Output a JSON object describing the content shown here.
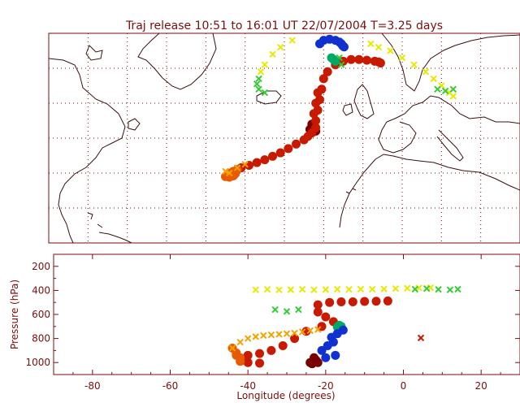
{
  "title": "Traj release 10:51 to 16:01 UT 22/07/2004    T=3.25 days",
  "colors": {
    "frame": "#7a0e0e",
    "grid": "#7a0e0e",
    "coast": "#3a1010",
    "palette": [
      "#7a0000",
      "#c81a00",
      "#e85a00",
      "#f5a200",
      "#e8e800",
      "#33cc33",
      "#00aa66",
      "#1030d0"
    ]
  },
  "chart_data": [
    {
      "type": "scatter",
      "panel": "map",
      "title": "Traj release 10:51 to 16:01 UT 22/07/2004    T=3.25 days",
      "xlim": [
        -90,
        30
      ],
      "ylim": [
        10,
        70
      ],
      "grid": true,
      "series": [
        {
          "color_index": 0,
          "x": [
            -23,
            -22.5,
            -23.5,
            -22
          ],
          "y": [
            44,
            43.5,
            42.5,
            42
          ]
        },
        {
          "color_index": 1,
          "x": [
            -22,
            -21.5,
            -21,
            -20.5,
            -20,
            -19,
            -17,
            -15,
            -13,
            -11,
            -9,
            -7,
            -6,
            -5.5,
            -22,
            -23,
            -24,
            -25,
            -27,
            -29,
            -31,
            -33,
            -35,
            -37,
            -39,
            -41,
            -42,
            -22.5,
            -22,
            -21.5
          ],
          "y": [
            45,
            48,
            51,
            54,
            57,
            59,
            61,
            62,
            62.5,
            62.5,
            62.3,
            62,
            61.8,
            61.5,
            43,
            41.5,
            40.5,
            39.5,
            38.3,
            37,
            35.8,
            34.8,
            33.8,
            33,
            32.2,
            31.5,
            31,
            47,
            50,
            53
          ]
        },
        {
          "color_index": 2,
          "x": [
            -42,
            -43,
            -44,
            -44.5,
            -45,
            -44,
            -43,
            -42.5
          ],
          "y": [
            31,
            30.5,
            30,
            29.5,
            29,
            28.8,
            29.2,
            29.8
          ]
        },
        {
          "color_index": 3,
          "x": [
            -44,
            -42,
            -40,
            -45
          ],
          "y": [
            30,
            31.5,
            32.5,
            30.5
          ],
          "marker": "x"
        },
        {
          "color_index": 4,
          "x": [
            -36,
            -35,
            -33,
            -31,
            -28,
            -3,
            0,
            3,
            6,
            8,
            10,
            -6,
            -8,
            12,
            13
          ],
          "y": [
            59,
            61,
            64,
            66,
            68,
            65,
            63,
            61,
            59,
            57,
            55,
            66,
            67,
            53,
            52
          ],
          "marker": "x"
        },
        {
          "color_index": 5,
          "x": [
            -36.5,
            -37,
            -36.5,
            -35,
            9,
            11,
            13,
            -15.5,
            -16
          ],
          "y": [
            57,
            55.5,
            54,
            53,
            54,
            53.5,
            54,
            61,
            63
          ],
          "marker": "x"
        },
        {
          "color_index": 6,
          "x": [
            -17,
            -17.5,
            -18
          ],
          "y": [
            62,
            62.5,
            63
          ]
        },
        {
          "color_index": 7,
          "x": [
            -21,
            -20,
            -18.5,
            -17,
            -16,
            -15.5,
            -15.2,
            -14.8
          ],
          "y": [
            67,
            68,
            68.3,
            68,
            67.5,
            67,
            66.5,
            66.1
          ]
        }
      ]
    },
    {
      "type": "scatter",
      "panel": "pressure",
      "xlabel": "Longitude  (degrees)",
      "ylabel": "Pressure  (hPa)",
      "xlim": [
        -90,
        30
      ],
      "ylim": [
        1100,
        100
      ],
      "xticks": [
        -80,
        -60,
        -40,
        -20,
        0,
        20
      ],
      "yticks": [
        200,
        400,
        600,
        800,
        1000
      ],
      "series": [
        {
          "color_index": 0,
          "x": [
            -23,
            -22.5,
            -22,
            -23.5,
            -24
          ],
          "y": [
            960,
            980,
            1000,
            1010,
            1000
          ]
        },
        {
          "color_index": 1,
          "x": [
            -22,
            -19,
            -16,
            -13,
            -10,
            -7,
            -4,
            -22,
            -20,
            -18,
            -21,
            -25,
            -28,
            -31,
            -34,
            -37,
            -40,
            -41,
            -40,
            -37
          ],
          "y": [
            520,
            500,
            495,
            495,
            492,
            490,
            488,
            580,
            620,
            660,
            700,
            740,
            800,
            860,
            900,
            925,
            940,
            980,
            1000,
            1005
          ]
        },
        {
          "color_index": 2,
          "x": [
            -42,
            -43,
            -44,
            -43,
            -42
          ],
          "y": [
            960,
            920,
            880,
            940,
            990
          ]
        },
        {
          "color_index": 3,
          "x": [
            -44,
            -42,
            -40,
            -38,
            -36,
            -34,
            -32,
            -30,
            -28,
            -26,
            -24,
            -22
          ],
          "y": [
            880,
            830,
            800,
            785,
            775,
            770,
            765,
            760,
            755,
            745,
            735,
            725
          ],
          "marker": "x"
        },
        {
          "color_index": 4,
          "x": [
            -38,
            -35,
            -32,
            -29,
            -26,
            -23,
            -20,
            -17,
            -14,
            -11,
            -8,
            -5,
            -2,
            1,
            4,
            7
          ],
          "y": [
            395,
            392,
            396,
            394,
            391,
            395,
            393,
            390,
            392,
            389,
            390,
            388,
            385,
            382,
            380,
            378
          ],
          "marker": "x"
        },
        {
          "color_index": 5,
          "x": [
            -33,
            -30,
            -27,
            3,
            6,
            9,
            12,
            14
          ],
          "y": [
            560,
            575,
            560,
            390,
            385,
            392,
            395,
            390
          ],
          "marker": "x"
        },
        {
          "color_index": 6,
          "x": [
            -17,
            -16.5,
            -16
          ],
          "y": [
            705,
            690,
            700
          ]
        },
        {
          "color_index": 7,
          "x": [
            -18.5,
            -17,
            -15.5,
            -18,
            -19.5,
            -21,
            -20,
            -17.5
          ],
          "y": [
            790,
            760,
            730,
            830,
            860,
            900,
            960,
            940
          ]
        },
        {
          "color_index": 1,
          "x": [
            4.5
          ],
          "y": [
            795
          ],
          "marker": "x"
        }
      ]
    }
  ]
}
